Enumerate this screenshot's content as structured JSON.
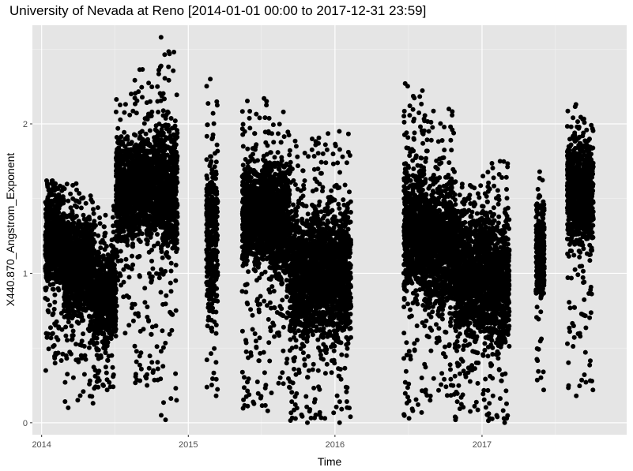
{
  "chart_data": {
    "type": "scatter",
    "title": "University of Nevada at Reno [2014-01-01 00:00 to 2017-12-31 23:59]",
    "xlabel": "Time",
    "ylabel": "X440.870_Angstrom_Exponent",
    "xlim": [
      "2013-12-09",
      "2017-12-27"
    ],
    "ylim": [
      -0.08,
      2.66
    ],
    "x_ticks": [
      {
        "label": "2014",
        "date": "2014-01-01"
      },
      {
        "label": "2015",
        "date": "2015-01-01"
      },
      {
        "label": "2016",
        "date": "2016-01-01"
      },
      {
        "label": "2017",
        "date": "2017-01-01"
      }
    ],
    "y_ticks": [
      0,
      1,
      2
    ],
    "grid": true,
    "point_color": "#000000",
    "background_color": "#e5e5e5",
    "segments": [
      {
        "start": "2014-01-10",
        "end": "2014-02-25",
        "center": 1.25,
        "spread": 0.28,
        "min": 0.35,
        "max": 1.62
      },
      {
        "start": "2014-02-25",
        "end": "2014-05-10",
        "center": 1.05,
        "spread": 0.3,
        "min": 0.1,
        "max": 1.6
      },
      {
        "start": "2014-05-10",
        "end": "2014-07-05",
        "center": 0.85,
        "spread": 0.28,
        "min": 0.22,
        "max": 1.45
      },
      {
        "start": "2014-07-05",
        "end": "2014-08-20",
        "center": 1.55,
        "spread": 0.3,
        "min": 0.6,
        "max": 2.2
      },
      {
        "start": "2014-08-20",
        "end": "2014-10-25",
        "center": 1.6,
        "spread": 0.3,
        "min": 0.25,
        "max": 2.38
      },
      {
        "start": "2014-10-25",
        "end": "2014-12-05",
        "center": 1.55,
        "spread": 0.4,
        "min": 0.02,
        "max": 2.58
      },
      {
        "start": "2015-02-15",
        "end": "2015-03-15",
        "center": 1.25,
        "spread": 0.45,
        "min": 0.18,
        "max": 2.3
      },
      {
        "start": "2015-05-15",
        "end": "2015-07-20",
        "center": 1.4,
        "spread": 0.3,
        "min": 0.08,
        "max": 2.17
      },
      {
        "start": "2015-07-20",
        "end": "2015-09-10",
        "center": 1.35,
        "spread": 0.35,
        "min": 0.2,
        "max": 2.08
      },
      {
        "start": "2015-09-10",
        "end": "2015-11-20",
        "center": 1.0,
        "spread": 0.38,
        "min": 0.0,
        "max": 1.9
      },
      {
        "start": "2015-11-20",
        "end": "2016-02-10",
        "center": 1.0,
        "spread": 0.38,
        "min": 0.0,
        "max": 1.95
      },
      {
        "start": "2016-06-20",
        "end": "2016-08-10",
        "center": 1.3,
        "spread": 0.4,
        "min": 0.03,
        "max": 2.27
      },
      {
        "start": "2016-08-10",
        "end": "2016-10-25",
        "center": 1.2,
        "spread": 0.38,
        "min": 0.15,
        "max": 2.1
      },
      {
        "start": "2016-10-25",
        "end": "2017-01-15",
        "center": 1.0,
        "spread": 0.38,
        "min": 0.02,
        "max": 1.65
      },
      {
        "start": "2017-01-15",
        "end": "2017-03-10",
        "center": 0.95,
        "spread": 0.38,
        "min": 0.0,
        "max": 1.75
      },
      {
        "start": "2017-05-15",
        "end": "2017-06-05",
        "center": 1.15,
        "spread": 0.28,
        "min": 0.22,
        "max": 1.68
      },
      {
        "start": "2017-08-01",
        "end": "2017-10-05",
        "center": 1.55,
        "spread": 0.32,
        "min": 0.18,
        "max": 2.13
      }
    ]
  }
}
